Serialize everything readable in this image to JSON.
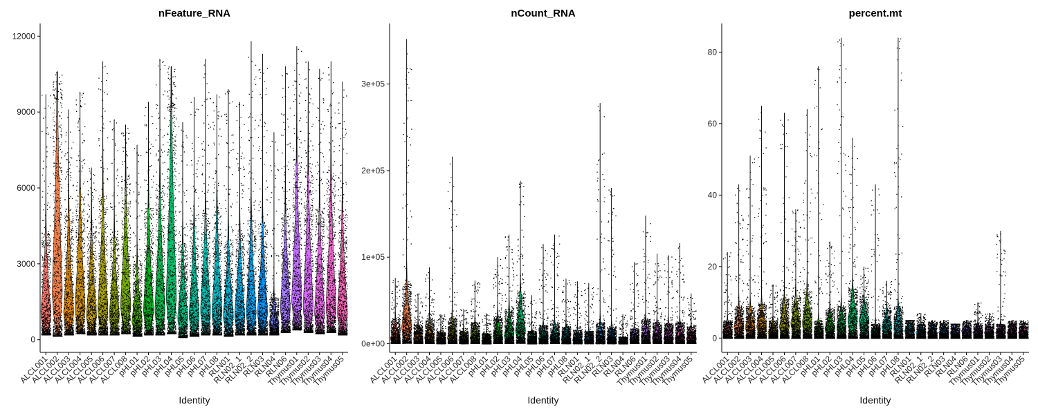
{
  "figure": {
    "xlabel": "Identity"
  },
  "chart_data": [
    {
      "type": "violin",
      "title": "nFeature_RNA",
      "xlabel": "Identity",
      "ylabel": "",
      "ylim": [
        -500,
        12500
      ],
      "yticks": [
        0,
        3000,
        6000,
        9000,
        12000
      ],
      "ytick_labels": [
        "0",
        "3000",
        "6000",
        "9000",
        "12000"
      ],
      "categories": [
        "ALCL001",
        "ALCL002",
        "ALCL003",
        "ALCL004",
        "ALCL005",
        "ALCL006",
        "ALCL007",
        "ALCL008",
        "pHL01",
        "pHL02",
        "pHL03",
        "pHL04",
        "pHL05",
        "pHL06",
        "pHL07",
        "pHL08",
        "RLN01",
        "RLN02_1",
        "RLN02_2",
        "RLN03",
        "RLN04",
        "RLN06",
        "Thymus01",
        "Thymus02",
        "Thymus03",
        "Thymus04",
        "Thymus05"
      ],
      "max": [
        9700,
        10600,
        9100,
        9800,
        6800,
        11000,
        8700,
        8500,
        7700,
        9400,
        11100,
        10800,
        8600,
        9600,
        11100,
        9700,
        9900,
        9400,
        11800,
        11300,
        8200,
        10800,
        11600,
        11000,
        10700,
        11000,
        10200
      ],
      "bulk": [
        4200,
        9500,
        5000,
        5800,
        4300,
        5600,
        4000,
        6000,
        3000,
        5200,
        6000,
        9200,
        3800,
        4500,
        5000,
        5000,
        4000,
        4200,
        4800,
        4600,
        1700,
        5000,
        7000,
        6500,
        5200,
        6300,
        5000
      ],
      "median": [
        1000,
        1800,
        1000,
        1200,
        900,
        1100,
        900,
        1300,
        700,
        1100,
        1100,
        1600,
        800,
        900,
        1100,
        1000,
        900,
        900,
        1000,
        1000,
        600,
        1200,
        1500,
        1200,
        1000,
        1200,
        1000
      ],
      "min": [
        200,
        150,
        200,
        250,
        200,
        200,
        200,
        250,
        150,
        200,
        200,
        250,
        100,
        150,
        200,
        200,
        150,
        200,
        200,
        200,
        200,
        300,
        400,
        300,
        250,
        300,
        200
      ]
    },
    {
      "type": "violin",
      "title": "nCount_RNA",
      "xlabel": "Identity",
      "ylabel": "",
      "ylim": [
        -10000,
        370000
      ],
      "yticks": [
        0,
        100000,
        200000,
        300000
      ],
      "ytick_labels": [
        "0e+00",
        "1e+05",
        "2e+05",
        "3e+05"
      ],
      "categories": [
        "ALCL001",
        "ALCL002",
        "ALCL003",
        "ALCL004",
        "ALCL005",
        "ALCL006",
        "ALCL007",
        "ALCL008",
        "pHL01",
        "pHL02",
        "pHL03",
        "pHL04",
        "pHL05",
        "pHL06",
        "pHL07",
        "pHL08",
        "RLN01",
        "RLN02_1",
        "RLN02_2",
        "RLN03",
        "RLN04",
        "RLN06",
        "Thymus01",
        "Thymus02",
        "Thymus03",
        "Thymus04",
        "Thymus05"
      ],
      "max": [
        76000,
        352000,
        58000,
        88000,
        34000,
        216000,
        40000,
        73000,
        35000,
        100000,
        126000,
        188000,
        56000,
        115000,
        126000,
        75000,
        72000,
        70000,
        278000,
        180000,
        34000,
        94000,
        148000,
        104000,
        102000,
        116000,
        58000
      ],
      "bulk": [
        28000,
        70000,
        22000,
        28000,
        14000,
        30000,
        15000,
        25000,
        12000,
        32000,
        40000,
        60000,
        15000,
        22000,
        24000,
        20000,
        16000,
        15000,
        25000,
        20000,
        8000,
        18000,
        28000,
        25000,
        24000,
        25000,
        20000
      ],
      "median": [
        5000,
        18000,
        5000,
        6000,
        4000,
        6000,
        4000,
        6000,
        3000,
        7000,
        8000,
        14000,
        4000,
        5000,
        6000,
        5000,
        4000,
        4000,
        5000,
        5000,
        2000,
        4000,
        6000,
        6000,
        5000,
        6000,
        5000
      ],
      "min": [
        500,
        800,
        500,
        500,
        400,
        500,
        400,
        500,
        300,
        500,
        500,
        800,
        300,
        400,
        500,
        400,
        400,
        400,
        400,
        400,
        300,
        500,
        600,
        500,
        500,
        500,
        500
      ]
    },
    {
      "type": "violin",
      "title": "percent.mt",
      "xlabel": "Identity",
      "ylabel": "",
      "ylim": [
        -4,
        88
      ],
      "yticks": [
        0,
        20,
        40,
        60,
        80
      ],
      "ytick_labels": [
        "0",
        "20",
        "40",
        "60",
        "80"
      ],
      "categories": [
        "ALCL001",
        "ALCL002",
        "ALCL003",
        "ALCL004",
        "ALCL005",
        "ALCL006",
        "ALCL007",
        "ALCL008",
        "pHL01",
        "pHL02",
        "pHL03",
        "pHL04",
        "pHL05",
        "pHL06",
        "pHL07",
        "pHL08",
        "RLN01",
        "RLN02_1",
        "RLN02_2",
        "RLN03",
        "RLN04",
        "RLN06",
        "Thymus01",
        "Thymus02",
        "Thymus03",
        "Thymus04",
        "Thymus05"
      ],
      "max": [
        24,
        43,
        51,
        65,
        15,
        63,
        36,
        64,
        76,
        27,
        84,
        56,
        20,
        43,
        16,
        84,
        5,
        7,
        5,
        5,
        4,
        5,
        10,
        7,
        30,
        5,
        5
      ],
      "bulk": [
        5,
        9,
        9,
        10,
        5,
        11,
        12,
        13,
        5,
        8,
        9,
        14,
        11,
        4,
        8,
        9,
        5,
        4,
        4,
        4,
        4,
        4,
        4,
        4,
        4,
        4,
        4
      ],
      "median": [
        1.5,
        3,
        3,
        3,
        1.5,
        3,
        4,
        4,
        1.5,
        2.5,
        3,
        5,
        5,
        0.5,
        3,
        3,
        2,
        1.5,
        1.5,
        1.5,
        1.5,
        2,
        1.5,
        1.5,
        1.5,
        1.5,
        1.5
      ],
      "min": [
        0,
        0,
        0,
        0,
        0,
        0,
        0,
        0,
        0,
        0,
        0,
        0,
        0,
        0,
        0,
        0,
        0,
        0,
        0,
        0,
        0,
        0,
        0,
        0,
        0,
        0,
        0
      ]
    }
  ]
}
